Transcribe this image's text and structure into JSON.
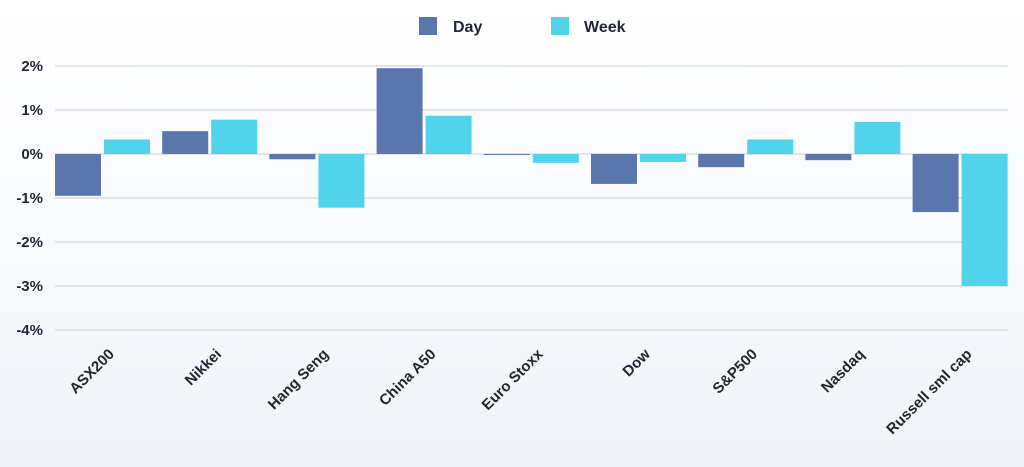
{
  "chart_data": {
    "type": "bar",
    "title": "",
    "xlabel": "",
    "ylabel": "",
    "categories": [
      "ASX200",
      "Nikkei",
      "Hang Seng",
      "China A50",
      "Euro Stoxx",
      "Dow",
      "S&P500",
      "Nasdaq",
      "Russell sml cap"
    ],
    "series": [
      {
        "name": "Day",
        "color": "#5a77ad",
        "values": [
          -0.95,
          0.52,
          -0.12,
          1.95,
          -0.02,
          -0.68,
          -0.3,
          -0.14,
          -1.32
        ]
      },
      {
        "name": "Week",
        "color": "#52d3ec",
        "values": [
          0.33,
          0.78,
          -1.22,
          0.87,
          -0.2,
          -0.18,
          0.33,
          0.73,
          -3.0
        ]
      }
    ],
    "ylim": [
      -4,
      2
    ],
    "yticks": [
      2,
      1,
      0,
      -1,
      -2,
      -3,
      -4
    ],
    "ytick_labels": [
      "2%",
      "1%",
      "0%",
      "-1%",
      "-2%",
      "-3%",
      "-4%"
    ],
    "grid": true,
    "legend_position": "top-center"
  }
}
